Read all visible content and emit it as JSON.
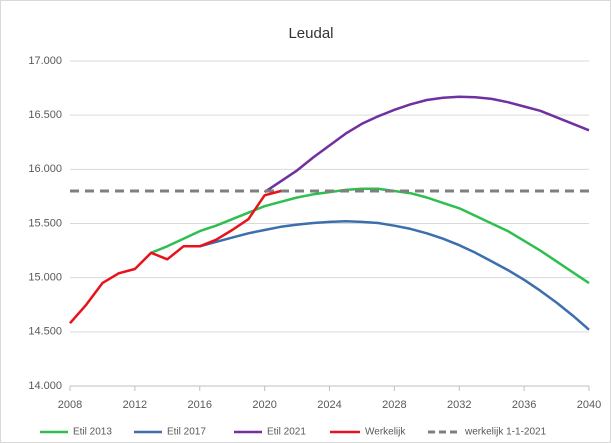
{
  "chart_data": {
    "type": "line",
    "title": "Leudal",
    "xlim": [
      2008,
      2040
    ],
    "xticks": [
      2008,
      2012,
      2016,
      2020,
      2024,
      2028,
      2032,
      2036,
      2040
    ],
    "ylim": [
      14000,
      17000
    ],
    "yticks": [
      {
        "value": 14000,
        "label": "14.000"
      },
      {
        "value": 14500,
        "label": "14.500"
      },
      {
        "value": 15000,
        "label": "15.000"
      },
      {
        "value": 15500,
        "label": "15.500"
      },
      {
        "value": 16000,
        "label": "16.000"
      },
      {
        "value": 16500,
        "label": "16.500"
      },
      {
        "value": 17000,
        "label": "17.000"
      }
    ],
    "grid": true,
    "legend": "bottom",
    "series": [
      {
        "name": "Etil 2013",
        "color": "#2fbf4f",
        "dash": false,
        "x": [
          2013,
          2014,
          2015,
          2016,
          2017,
          2018,
          2019,
          2020,
          2021,
          2022,
          2023,
          2024,
          2025,
          2026,
          2027,
          2028,
          2029,
          2030,
          2031,
          2032,
          2033,
          2034,
          2035,
          2036,
          2037,
          2038,
          2039,
          2040
        ],
        "values": [
          15230,
          15290,
          15360,
          15430,
          15480,
          15540,
          15600,
          15660,
          15700,
          15740,
          15770,
          15790,
          15810,
          15820,
          15820,
          15800,
          15780,
          15740,
          15690,
          15640,
          15570,
          15500,
          15430,
          15340,
          15250,
          15150,
          15050,
          14950
        ]
      },
      {
        "name": "Etil 2017",
        "color": "#3b6fad",
        "dash": false,
        "x": [
          2016,
          2017,
          2018,
          2019,
          2020,
          2021,
          2022,
          2023,
          2024,
          2025,
          2026,
          2027,
          2028,
          2029,
          2030,
          2031,
          2032,
          2033,
          2034,
          2035,
          2036,
          2037,
          2038,
          2039,
          2040
        ],
        "values": [
          15290,
          15330,
          15370,
          15410,
          15440,
          15470,
          15490,
          15505,
          15515,
          15520,
          15515,
          15505,
          15480,
          15450,
          15410,
          15360,
          15300,
          15230,
          15150,
          15070,
          14980,
          14880,
          14770,
          14650,
          14520
        ]
      },
      {
        "name": "Etil 2021",
        "color": "#7030a0",
        "dash": false,
        "x": [
          2020,
          2021,
          2022,
          2023,
          2024,
          2025,
          2026,
          2027,
          2028,
          2029,
          2030,
          2031,
          2032,
          2033,
          2034,
          2035,
          2036,
          2037,
          2038,
          2039,
          2040
        ],
        "values": [
          15790,
          15890,
          15990,
          16110,
          16220,
          16330,
          16420,
          16490,
          16550,
          16600,
          16640,
          16660,
          16670,
          16665,
          16650,
          16620,
          16580,
          16540,
          16480,
          16420,
          16360
        ]
      },
      {
        "name": "Werkelijk",
        "color": "#e8121c",
        "dash": false,
        "x": [
          2008,
          2009,
          2010,
          2011,
          2012,
          2013,
          2014,
          2015,
          2016,
          2017,
          2018,
          2019,
          2020,
          2021
        ],
        "values": [
          14580,
          14750,
          14950,
          15040,
          15080,
          15230,
          15170,
          15290,
          15290,
          15350,
          15440,
          15540,
          15760,
          15800
        ]
      },
      {
        "name": "werkelijk 1-1-2021",
        "color": "#7f7f7f",
        "dash": true,
        "x": [
          2008,
          2040
        ],
        "values": [
          15800,
          15800
        ]
      }
    ]
  }
}
